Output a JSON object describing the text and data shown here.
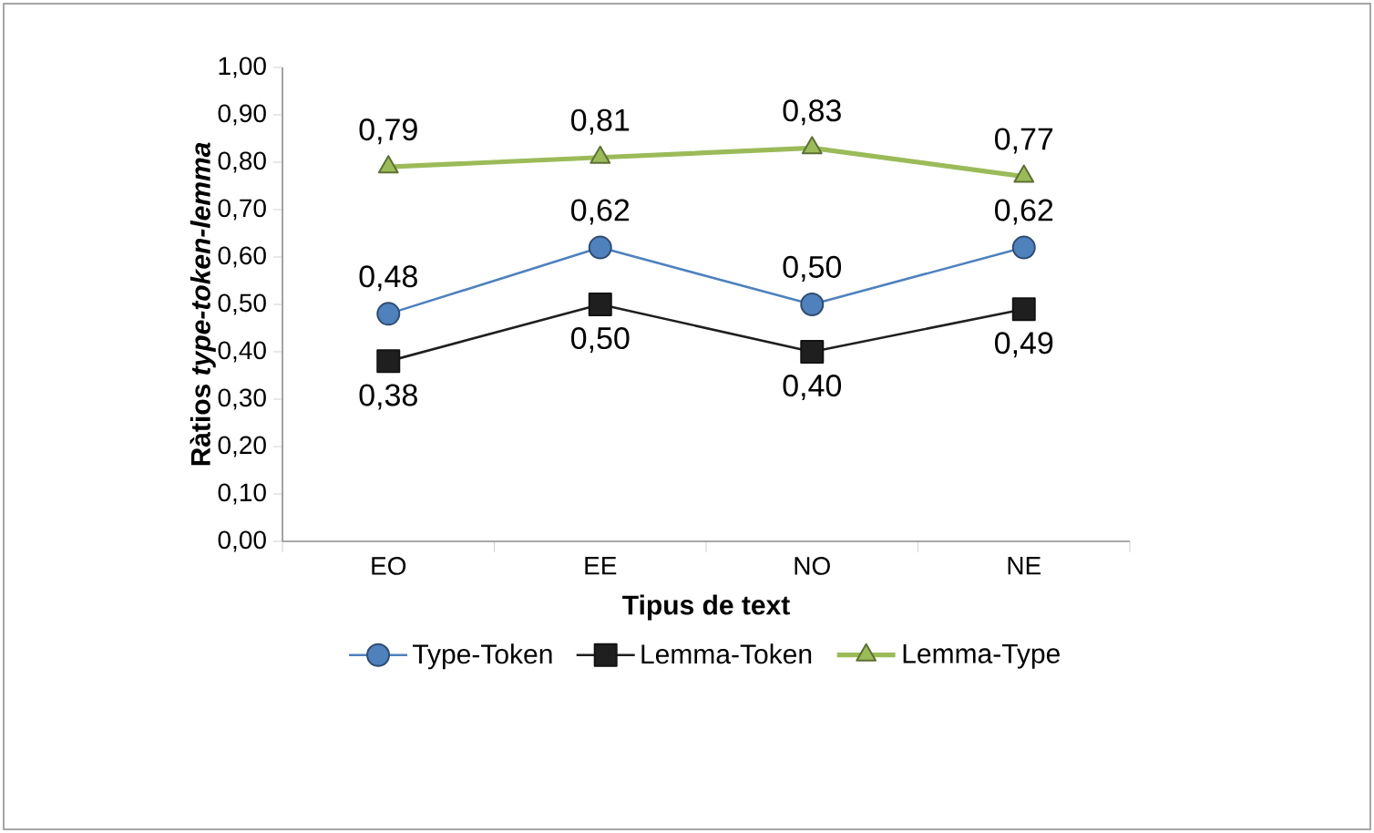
{
  "chart_data": {
    "type": "line",
    "xlabel": "Tipus de text",
    "ylabel": "Ràtios *type-token-lemma*",
    "categories": [
      "EO",
      "EE",
      "NO",
      "NE"
    ],
    "series": [
      {
        "name": "Type-Token",
        "color": "#4f81bd",
        "marker": "circle",
        "values": [
          0.48,
          0.62,
          0.5,
          0.62
        ],
        "value_labels": [
          "0,48",
          "0,62",
          "0,50",
          "0,62"
        ]
      },
      {
        "name": "Lemma-Token",
        "color": "#1f1f1f",
        "marker": "square",
        "values": [
          0.38,
          0.5,
          0.4,
          0.49
        ],
        "value_labels": [
          "0,38",
          "0,50",
          "0,40",
          "0,49"
        ]
      },
      {
        "name": "Lemma-Type",
        "color": "#9bbb59",
        "marker": "triangle",
        "values": [
          0.79,
          0.81,
          0.83,
          0.77
        ],
        "value_labels": [
          "0,79",
          "0,81",
          "0,83",
          "0,77"
        ]
      }
    ],
    "ylim": [
      0,
      1
    ],
    "yticks": [
      {
        "value": 0,
        "label": "0,00"
      },
      {
        "value": 0.1,
        "label": "0,10"
      },
      {
        "value": 0.2,
        "label": "0,20"
      },
      {
        "value": 0.3,
        "label": "0,30"
      },
      {
        "value": 0.4,
        "label": "0,40"
      },
      {
        "value": 0.5,
        "label": "0,50"
      },
      {
        "value": 0.6,
        "label": "0,60"
      },
      {
        "value": 0.7,
        "label": "0,70"
      },
      {
        "value": 0.8,
        "label": "0,80"
      },
      {
        "value": 0.9,
        "label": "0,90"
      },
      {
        "value": 1,
        "label": "1,00"
      }
    ],
    "grid": false,
    "legend": "bottom",
    "line_style": "solid"
  }
}
